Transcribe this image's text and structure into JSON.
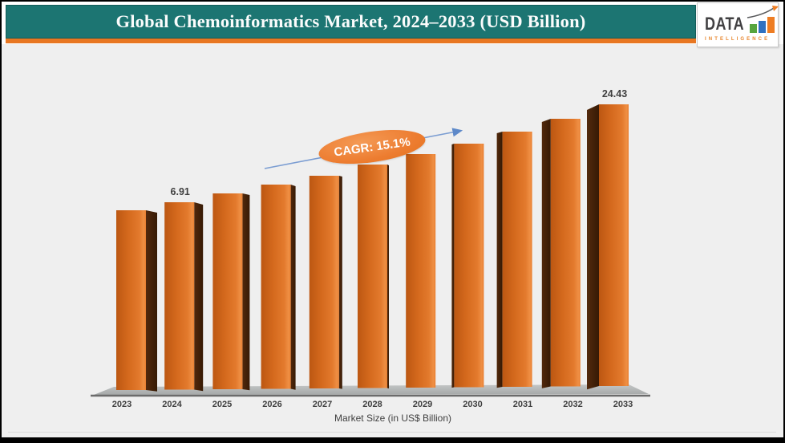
{
  "header": {
    "title": "Global Chemoinformatics Market, 2024–2033 (USD Billion)"
  },
  "logo": {
    "word": "DATA",
    "tagline": "INTELLIGENCE",
    "bar_colors": [
      "#57a53f",
      "#2f71c1",
      "#ee7d23"
    ]
  },
  "chart_data": {
    "type": "bar",
    "style": "3d-column",
    "title": "Global Chemoinformatics Market, 2024–2033 (USD Billion)",
    "xlabel": "Market Size (in US$ Billion)",
    "ylabel": "",
    "categories": [
      "2023",
      "2024",
      "2025",
      "2026",
      "2027",
      "2028",
      "2029",
      "2030",
      "2031",
      "2032",
      "2033"
    ],
    "series": [
      {
        "name": "Market Size (in US$ Billion)",
        "values": [
          6.0,
          6.91,
          7.95,
          9.15,
          10.54,
          12.13,
          13.96,
          16.07,
          18.5,
          21.29,
          24.43
        ]
      }
    ],
    "data_labels": {
      "2024": "6.91",
      "2033": "24.43"
    },
    "cagr_label": "CAGR: 15.1%",
    "legend": "none",
    "grid": "off",
    "colors": {
      "bar_front": "#D4691D",
      "bar_side": "#45220A",
      "floor": "#AFB2B2",
      "arrow": "#7B9DD2",
      "ellipse": "#ED7D31",
      "label_text": "#3F3F3F"
    },
    "pixel_layout": {
      "baseline_y": 484,
      "bar_tops_y": [
        260,
        250,
        239,
        228,
        217,
        203,
        190,
        177,
        162,
        146,
        128
      ]
    }
  }
}
